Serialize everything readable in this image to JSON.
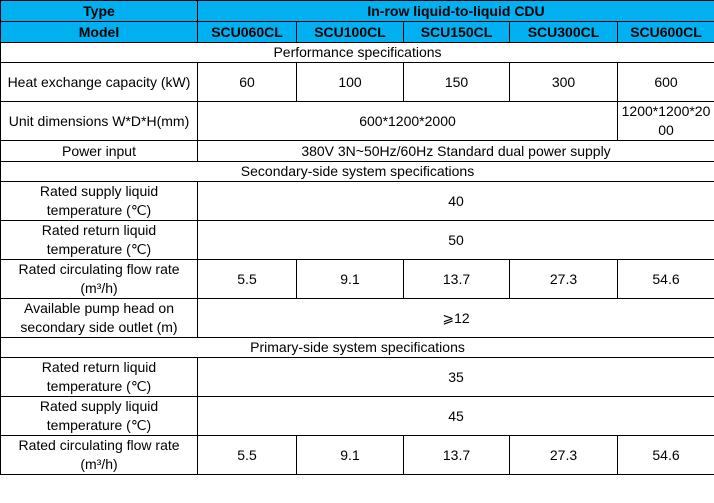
{
  "header": {
    "type_label": "Type",
    "type_value": "In-row liquid-to-liquid CDU",
    "model_label": "Model",
    "models": [
      "SCU060CL",
      "SCU100CL",
      "SCU150CL",
      "SCU300CL",
      "SCU600CL"
    ]
  },
  "performance": {
    "section_title": "Performance specifications",
    "heat_capacity": {
      "label": "Heat exchange capacity (kW)",
      "values": [
        "60",
        "100",
        "150",
        "300",
        "600"
      ]
    },
    "dimensions": {
      "label": "Unit dimensions W*D*H(mm)",
      "value_common": "600*1200*2000",
      "value_600": "1200*1200*2000"
    },
    "power": {
      "label": "Power input",
      "value": "380V 3N~50Hz/60Hz Standard dual power supply"
    }
  },
  "secondary": {
    "section_title": "Secondary-side system specifications",
    "supply_temp": {
      "label": "Rated supply liquid temperature (℃)",
      "value": "40"
    },
    "return_temp": {
      "label": "Rated return liquid temperature (℃)",
      "value": "50"
    },
    "flow_rate": {
      "label": "Rated circulating flow rate (m³/h)",
      "values": [
        "5.5",
        "9.1",
        "13.7",
        "27.3",
        "54.6"
      ]
    },
    "pump_head": {
      "label": "Available pump head on secondary side outlet (m)",
      "value": "⩾12"
    }
  },
  "primary": {
    "section_title": "Primary-side system specifications",
    "return_temp": {
      "label": "Rated return liquid temperature (℃)",
      "value": "35"
    },
    "supply_temp": {
      "label": "Rated supply liquid temperature (℃)",
      "value": "45"
    },
    "flow_rate": {
      "label": "Rated circulating flow rate (m³/h)",
      "values": [
        "5.5",
        "9.1",
        "13.7",
        "27.3",
        "54.6"
      ]
    }
  }
}
